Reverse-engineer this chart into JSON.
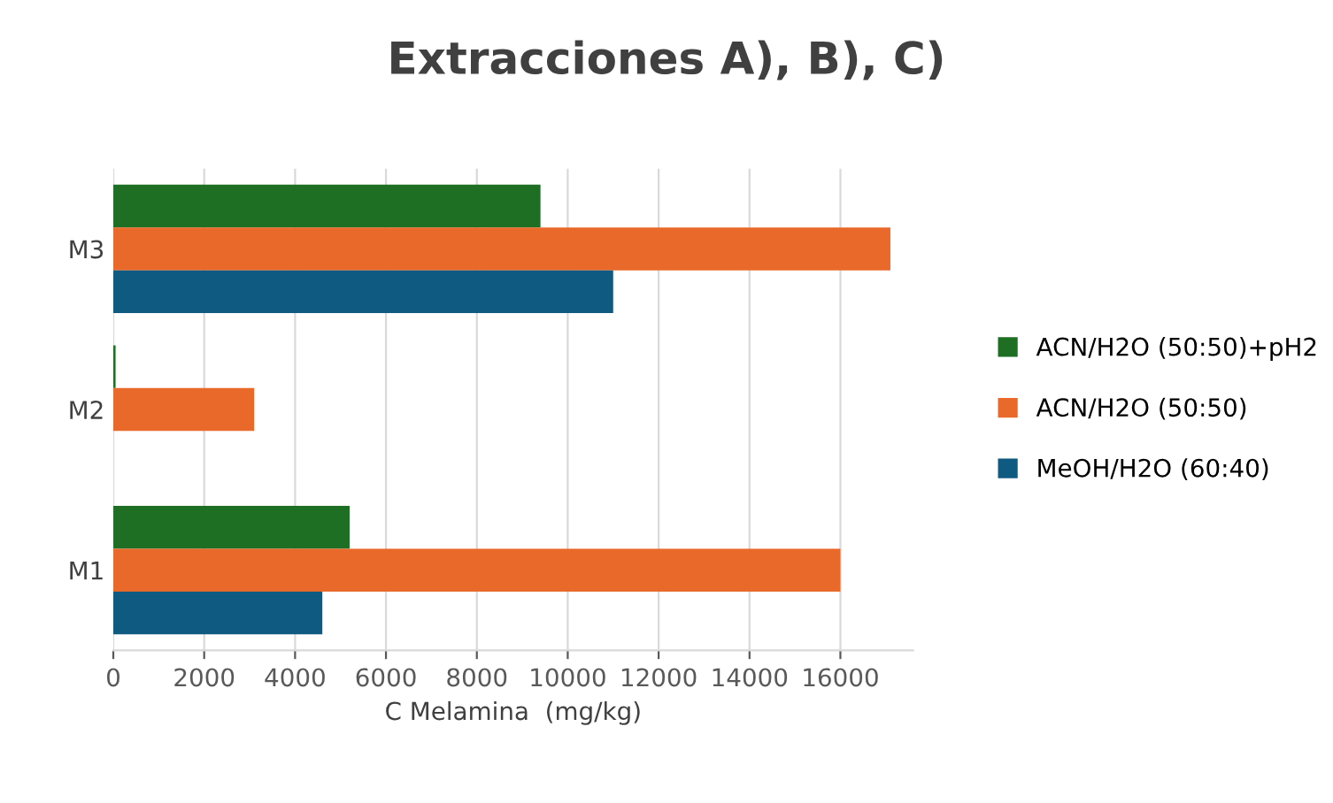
{
  "chart_data": {
    "type": "bar",
    "orientation": "horizontal",
    "title": "Extracciones A), B), C)",
    "xlabel": "C Melamina  (mg/kg)",
    "categories": [
      "M3",
      "M2",
      "M1"
    ],
    "series": [
      {
        "name": "ACN/H2O (50:50)+pH2",
        "color": "#1e6e23",
        "values": [
          9400,
          50,
          5200
        ]
      },
      {
        "name": "ACN/H2O (50:50)",
        "color": "#e8692a",
        "values": [
          17100,
          3100,
          16000
        ]
      },
      {
        "name": "MeOH/H2O (60:40)",
        "color": "#0f5a80",
        "values": [
          11000,
          0,
          4600
        ]
      }
    ],
    "xlim": [
      0,
      17600
    ],
    "xticks": [
      0,
      2000,
      4000,
      6000,
      8000,
      10000,
      12000,
      14000,
      16000
    ],
    "grid": "x",
    "legend": "right"
  }
}
